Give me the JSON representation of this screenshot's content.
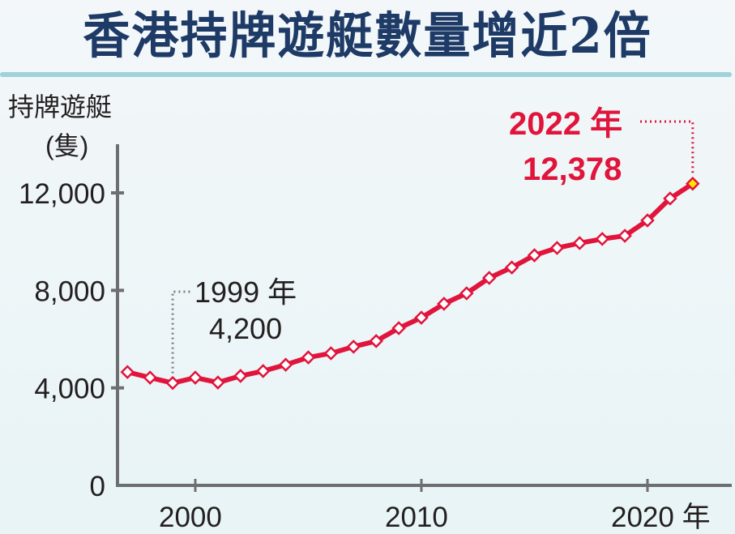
{
  "header": {
    "title": "香港持牌遊艇數量增近2倍"
  },
  "chart_data": {
    "type": "line",
    "title": "香港持牌遊艇數量增近2倍",
    "xlabel": "年",
    "ylabel": "持牌遊艇",
    "yunit": "(隻)",
    "ylim": [
      0,
      13000
    ],
    "yticks": [
      0,
      4000,
      8000,
      12000
    ],
    "ytick_labels": [
      "0",
      "4,000",
      "8,000",
      "12,000"
    ],
    "xticks": [
      2000,
      2010,
      2020
    ],
    "xtick_labels": [
      "2000",
      "2010",
      "2020 年"
    ],
    "grid": false,
    "x": [
      1997,
      1998,
      1999,
      2000,
      2001,
      2002,
      2003,
      2004,
      2005,
      2006,
      2007,
      2008,
      2009,
      2010,
      2011,
      2012,
      2013,
      2014,
      2015,
      2016,
      2017,
      2018,
      2019,
      2020,
      2021,
      2022
    ],
    "series": [
      {
        "name": "持牌遊艇",
        "color": "#e1143c",
        "values": [
          4650,
          4420,
          4200,
          4420,
          4220,
          4490,
          4690,
          4950,
          5250,
          5420,
          5690,
          5920,
          6450,
          6880,
          7450,
          7880,
          8510,
          8940,
          9440,
          9740,
          9940,
          10110,
          10240,
          10870,
          11770,
          12378
        ]
      }
    ],
    "annotations": [
      {
        "x": 1999,
        "line1": "1999 年",
        "line2": "4,200",
        "color": "#231f20"
      },
      {
        "x": 2022,
        "line1": "2022 年",
        "line2": "12,378",
        "color": "#e1143c",
        "marker_fill": "#ffe600"
      }
    ]
  }
}
